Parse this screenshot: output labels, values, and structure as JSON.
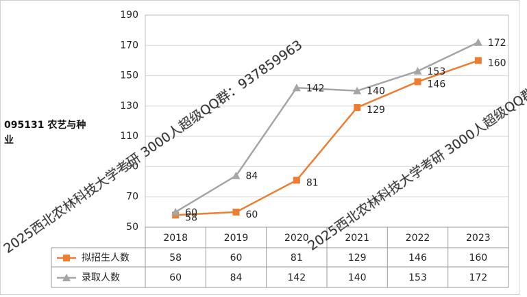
{
  "chart_data": {
    "type": "line",
    "y_label": "095131 农艺与种业",
    "categories": [
      "2018",
      "2019",
      "2020",
      "2021",
      "2022",
      "2023"
    ],
    "series": [
      {
        "name": "拟招生人数",
        "color": "#ED7D31",
        "marker": "square",
        "values": [
          58,
          60,
          81,
          129,
          146,
          160
        ]
      },
      {
        "name": "录取人数",
        "color": "#A5A5A5",
        "marker": "triangle",
        "values": [
          60,
          84,
          142,
          140,
          153,
          172
        ]
      }
    ],
    "ylim": [
      50,
      190
    ],
    "yticks": [
      50,
      70,
      90,
      110,
      130,
      150,
      170,
      190
    ],
    "grid": true,
    "data_table": true,
    "watermark": "2025西北农林科技大学考研 3000人超级QQ群：937859963"
  }
}
